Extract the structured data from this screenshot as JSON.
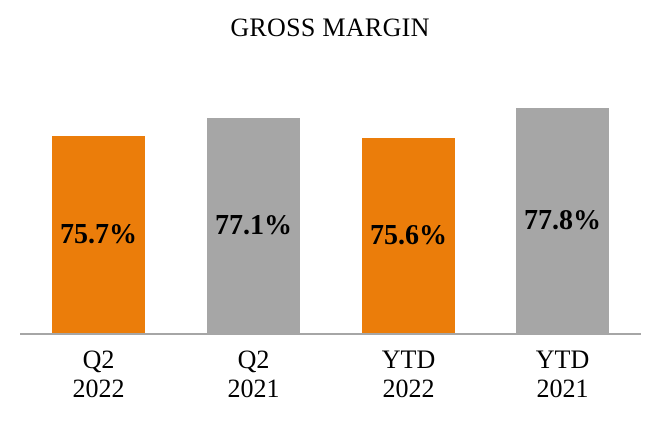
{
  "chart_data": {
    "type": "bar",
    "title": "GROSS MARGIN",
    "categories": [
      "Q2 2022",
      "Q2 2021",
      "YTD 2022",
      "YTD 2021"
    ],
    "bars": [
      {
        "category_line1": "Q2",
        "category_line2": "2022",
        "value": 75.7,
        "label": "75.7%",
        "color": "#eb7d0a"
      },
      {
        "category_line1": "Q2",
        "category_line2": "2021",
        "value": 77.1,
        "label": "77.1%",
        "color": "#a6a6a6"
      },
      {
        "category_line1": "YTD",
        "category_line2": "2022",
        "value": 75.6,
        "label": "75.6%",
        "color": "#eb7d0a"
      },
      {
        "category_line1": "YTD",
        "category_line2": "2021",
        "value": 77.8,
        "label": "77.8%",
        "color": "#a6a6a6"
      }
    ],
    "xlabel": "",
    "ylabel": "",
    "ylim": [
      61,
      79
    ],
    "grid": false,
    "legend": "none",
    "value_label_position": "center-inside-bar",
    "colors": {
      "series_2022": "#eb7d0a",
      "series_2021": "#a6a6a6",
      "axis_line": "#a6a6a6",
      "text": "#000000",
      "background": "#ffffff"
    }
  }
}
